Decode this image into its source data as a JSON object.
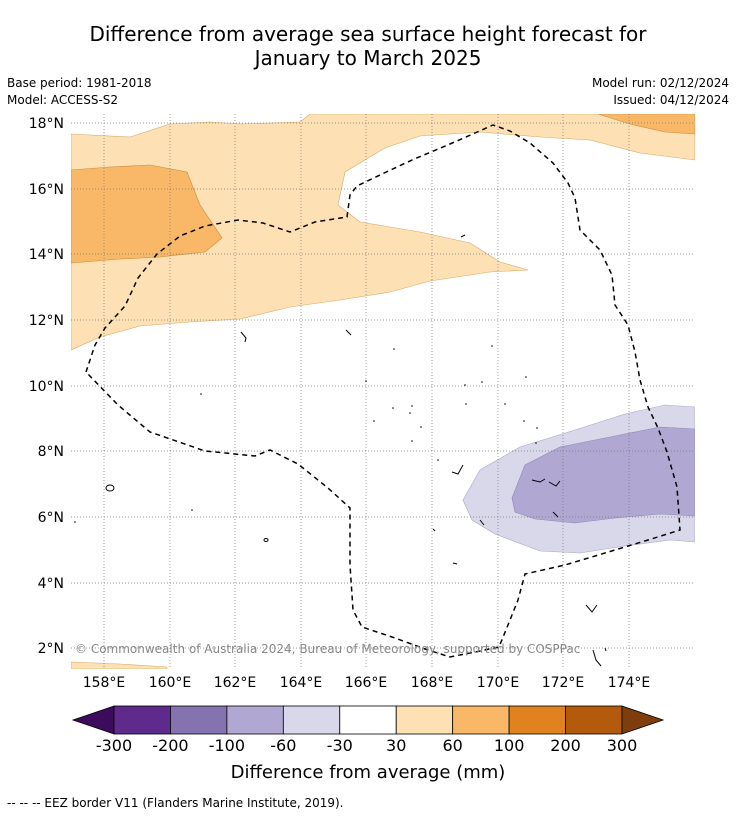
{
  "title": {
    "line1": "Difference from average sea surface height forecast for",
    "line2": "January to March 2025"
  },
  "meta": {
    "base_period": "Base period: 1981-2018",
    "model": "Model: ACCESS-S2",
    "model_run": "Model run: 02/12/2024",
    "issued": "Issued: 04/12/2024"
  },
  "map": {
    "lat_labels": [
      "18°N",
      "16°N",
      "14°N",
      "12°N",
      "10°N",
      "8°N",
      "6°N",
      "4°N",
      "2°N"
    ],
    "lon_labels": [
      "158°E",
      "160°E",
      "162°E",
      "164°E",
      "166°E",
      "168°E",
      "170°E",
      "172°E",
      "174°E"
    ],
    "copyright": "© Commonwealth of Australia 2024, Bureau of Meteorology, supported by COSPPac"
  },
  "colorbar": {
    "title": "Difference from average (mm)",
    "labels": [
      "-300",
      "-200",
      "-100",
      "-60",
      "-30",
      "30",
      "60",
      "100",
      "200",
      "300"
    ],
    "colors": [
      "#5e2a8c",
      "#8573b0",
      "#b0a8d2",
      "#d8d8ea",
      "#ffffff",
      "#fde0b3",
      "#f9b868",
      "#e0821f",
      "#b35a0c"
    ],
    "extend_low": "#3d0b5e",
    "extend_high": "#7f3d0e"
  },
  "legend": {
    "eez": "-- -- -- EEZ border V11 (Flanders Marine Institute, 2019)."
  }
}
